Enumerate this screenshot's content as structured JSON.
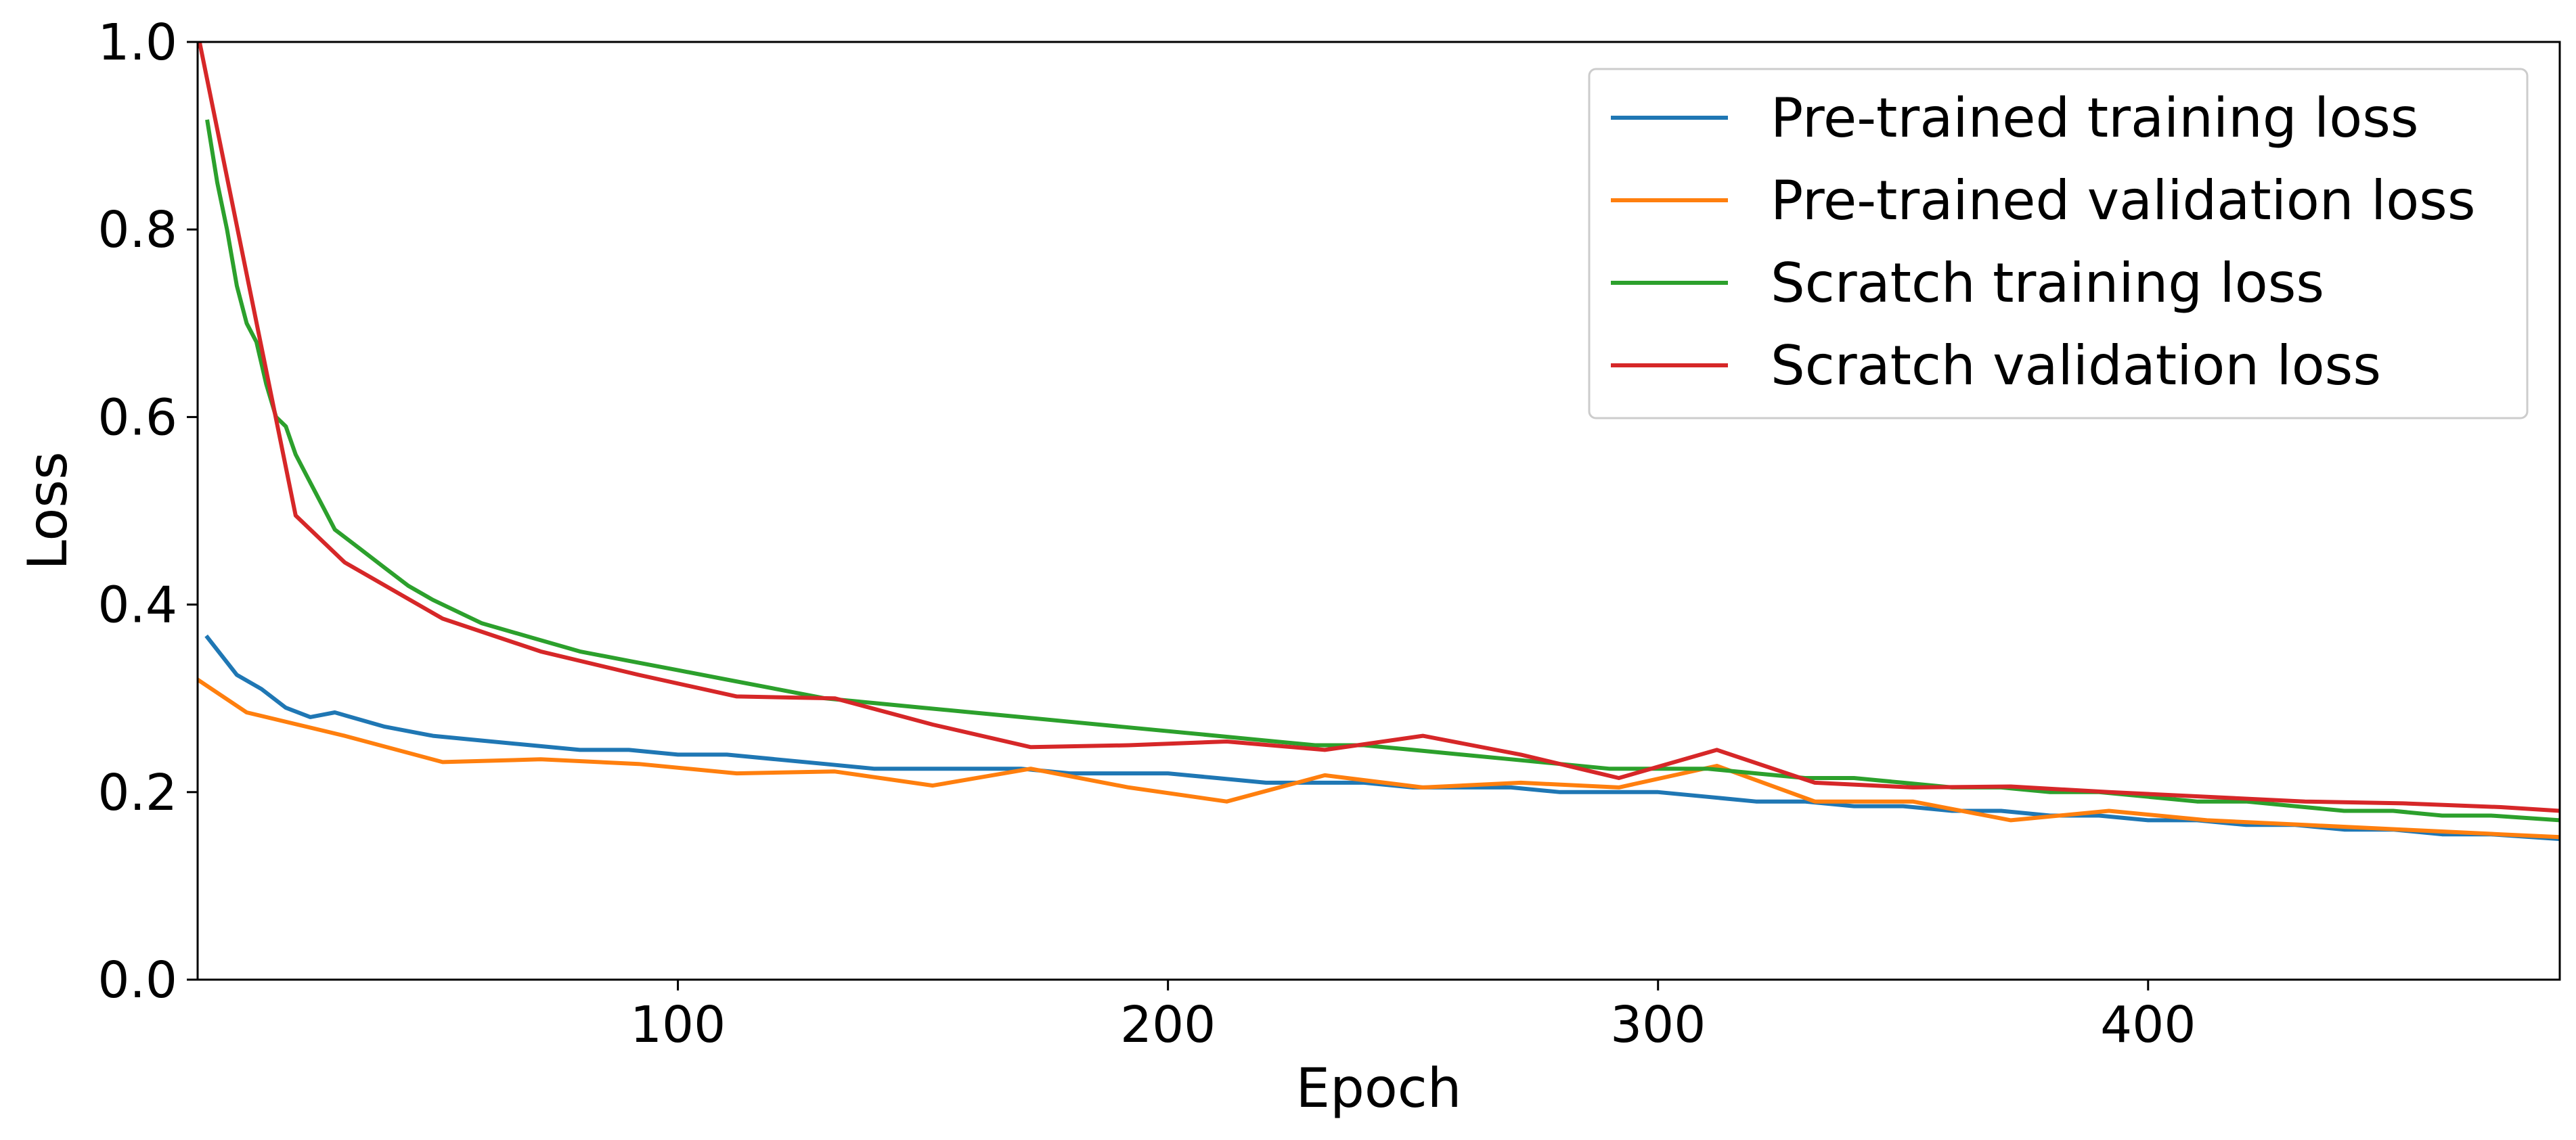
{
  "chart_data": {
    "type": "line",
    "title": "",
    "xlabel": "Epoch",
    "ylabel": "Loss",
    "xlim": [
      2,
      484
    ],
    "ylim": [
      0.0,
      1.0
    ],
    "x_ticks": [
      100,
      200,
      300,
      400
    ],
    "x_tick_labels": [
      "100",
      "200",
      "300",
      "400"
    ],
    "y_ticks": [
      0.0,
      0.2,
      0.4,
      0.6,
      0.8,
      1.0
    ],
    "y_tick_labels": [
      "0.0",
      "0.2",
      "0.4",
      "0.6",
      "0.8",
      "1.0"
    ],
    "grid": false,
    "legend_position": "top-right",
    "series": [
      {
        "name": "Pre-trained training loss",
        "color": "#1f77b4",
        "x": [
          4,
          10,
          15,
          20,
          25,
          30,
          40,
          50,
          60,
          70,
          80,
          90,
          100,
          110,
          120,
          130,
          140,
          150,
          160,
          170,
          180,
          190,
          200,
          210,
          220,
          230,
          240,
          250,
          260,
          270,
          280,
          290,
          300,
          310,
          320,
          330,
          340,
          350,
          360,
          370,
          380,
          390,
          400,
          410,
          420,
          430,
          440,
          450,
          460,
          470,
          484
        ],
        "y": [
          0.365,
          0.325,
          0.31,
          0.29,
          0.28,
          0.285,
          0.27,
          0.26,
          0.255,
          0.25,
          0.245,
          0.245,
          0.24,
          0.24,
          0.235,
          0.23,
          0.225,
          0.225,
          0.225,
          0.225,
          0.22,
          0.22,
          0.22,
          0.215,
          0.21,
          0.21,
          0.21,
          0.205,
          0.205,
          0.205,
          0.2,
          0.2,
          0.2,
          0.195,
          0.19,
          0.19,
          0.185,
          0.185,
          0.18,
          0.18,
          0.175,
          0.175,
          0.17,
          0.17,
          0.165,
          0.165,
          0.16,
          0.16,
          0.155,
          0.155,
          0.15
        ]
      },
      {
        "name": "Pre-trained validation loss",
        "color": "#ff7f0e",
        "x": [
          2,
          12,
          32,
          52,
          72,
          92,
          112,
          132,
          152,
          172,
          192,
          212,
          232,
          252,
          272,
          292,
          312,
          332,
          352,
          372,
          392,
          412,
          432,
          452,
          472,
          484
        ],
        "y": [
          0.32,
          0.285,
          0.26,
          0.232,
          0.235,
          0.23,
          0.22,
          0.222,
          0.207,
          0.225,
          0.205,
          0.19,
          0.218,
          0.205,
          0.21,
          0.205,
          0.228,
          0.19,
          0.19,
          0.17,
          0.18,
          0.17,
          0.165,
          0.16,
          0.155,
          0.152
        ]
      },
      {
        "name": "Scratch training loss",
        "color": "#2ca02c",
        "x": [
          4,
          6,
          8,
          10,
          12,
          14,
          16,
          18,
          20,
          22,
          24,
          26,
          28,
          30,
          35,
          40,
          45,
          50,
          60,
          70,
          80,
          90,
          100,
          110,
          120,
          130,
          140,
          150,
          160,
          170,
          180,
          190,
          200,
          210,
          220,
          230,
          240,
          250,
          260,
          270,
          280,
          290,
          300,
          310,
          320,
          330,
          340,
          350,
          360,
          370,
          380,
          390,
          400,
          410,
          420,
          430,
          440,
          450,
          460,
          470,
          484
        ],
        "y": [
          0.915,
          0.85,
          0.8,
          0.74,
          0.7,
          0.68,
          0.635,
          0.6,
          0.59,
          0.56,
          0.54,
          0.52,
          0.5,
          0.48,
          0.46,
          0.44,
          0.42,
          0.405,
          0.38,
          0.365,
          0.35,
          0.34,
          0.33,
          0.32,
          0.31,
          0.3,
          0.295,
          0.29,
          0.285,
          0.28,
          0.275,
          0.27,
          0.265,
          0.26,
          0.255,
          0.25,
          0.25,
          0.245,
          0.24,
          0.235,
          0.23,
          0.225,
          0.225,
          0.225,
          0.22,
          0.215,
          0.215,
          0.21,
          0.205,
          0.205,
          0.2,
          0.2,
          0.195,
          0.19,
          0.19,
          0.185,
          0.18,
          0.18,
          0.175,
          0.175,
          0.17
        ]
      },
      {
        "name": "Scratch validation loss",
        "color": "#d62728",
        "x": [
          2,
          22,
          32,
          52,
          72,
          92,
          112,
          132,
          152,
          172,
          192,
          212,
          232,
          252,
          272,
          292,
          312,
          332,
          352,
          372,
          392,
          412,
          432,
          452,
          472,
          484
        ],
        "y": [
          1.01,
          0.495,
          0.445,
          0.385,
          0.35,
          0.325,
          0.302,
          0.3,
          0.272,
          0.248,
          0.25,
          0.254,
          0.245,
          0.26,
          0.24,
          0.215,
          0.245,
          0.21,
          0.205,
          0.206,
          0.2,
          0.195,
          0.19,
          0.188,
          0.184,
          0.18
        ]
      }
    ]
  }
}
